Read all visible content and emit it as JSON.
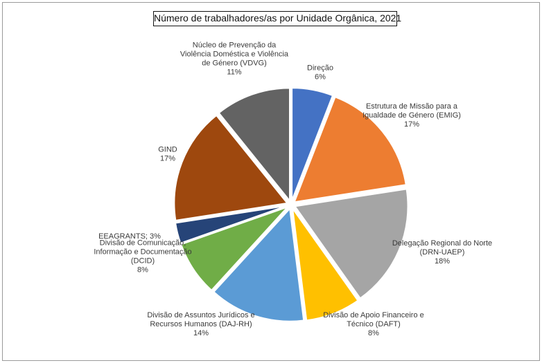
{
  "chart_data": {
    "type": "pie",
    "title": "Número de trabalhadores/as por Unidade Orgânica, 2021",
    "slices": [
      {
        "label": [
          "Direção"
        ],
        "value": 6,
        "pct_text": "6%",
        "color": "#4472C4"
      },
      {
        "label": [
          "Estrutura de Missão para a",
          "Igualdade de Género (EMIG)"
        ],
        "value": 17,
        "pct_text": "17%",
        "color": "#ED7D31"
      },
      {
        "label": [
          "Delegação Regional do Norte",
          "(DRN-UAEP)"
        ],
        "value": 18,
        "pct_text": "18%",
        "color": "#A5A5A5"
      },
      {
        "label": [
          "Divisão de Apoio Financeiro e",
          "Técnico (DAFT)"
        ],
        "value": 8,
        "pct_text": "8%",
        "color": "#FFC000"
      },
      {
        "label": [
          "Divisão de Assuntos Jurídicos  e",
          "Recursos Humanos (DAJ-RH)"
        ],
        "value": 14,
        "pct_text": "14%",
        "color": "#5B9BD5"
      },
      {
        "label": [
          "Divisão de Comunicação,",
          "Informação e Documentação",
          "(DCID)"
        ],
        "value": 8,
        "pct_text": "8%",
        "color": "#70AD47"
      },
      {
        "label": [
          "EEAGRANTS; 3%"
        ],
        "value": 3,
        "pct_text": "",
        "color": "#264478"
      },
      {
        "label": [
          "GIND"
        ],
        "value": 17,
        "pct_text": "17%",
        "color": "#9E480E"
      },
      {
        "label": [
          "Núcleo de Prevenção da",
          "Violência Doméstica e Violência",
          "de Género (VDVG)"
        ],
        "value": 11,
        "pct_text": "11%",
        "color": "#636363"
      }
    ],
    "legend": "none",
    "labels": "outside"
  }
}
